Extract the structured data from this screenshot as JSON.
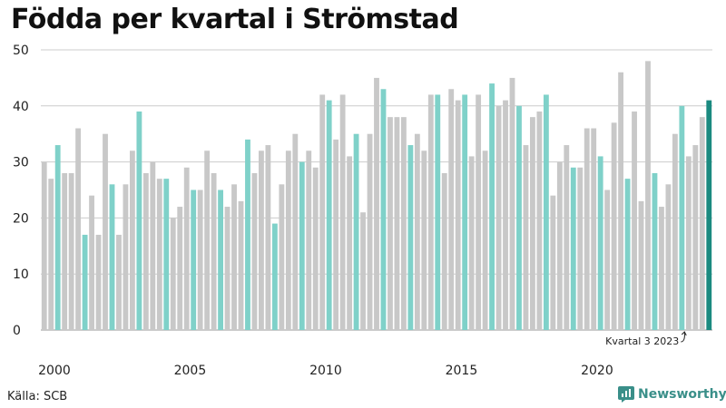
{
  "title": "Födda per kvartal i Strömstad",
  "source": "Källa: SCB",
  "brand": "Newsworthy",
  "colors": {
    "regular": "#c8c8c8",
    "q3": "#7fd1c9",
    "latest": "#1b8a80",
    "grid": "#cccccc",
    "brand": "#3a8f89"
  },
  "annotation": "Kvartal 3 2023",
  "chart_data": {
    "type": "bar",
    "title": "Födda per kvartal i Strömstad",
    "xlabel": "",
    "ylabel": "",
    "ylim": [
      0,
      50
    ],
    "yticks": [
      0,
      10,
      20,
      30,
      40,
      50
    ],
    "xticks": [
      "2000",
      "2005",
      "2010",
      "2015",
      "2020"
    ],
    "start_year": 2000,
    "highlight": "Kvartal 3",
    "grid": true,
    "values": [
      30,
      27,
      33,
      28,
      28,
      36,
      17,
      24,
      17,
      35,
      26,
      17,
      26,
      32,
      39,
      28,
      30,
      27,
      27,
      20,
      22,
      29,
      25,
      25,
      32,
      28,
      25,
      22,
      26,
      23,
      34,
      28,
      32,
      33,
      19,
      26,
      32,
      35,
      30,
      32,
      29,
      42,
      41,
      34,
      42,
      31,
      35,
      21,
      35,
      45,
      43,
      38,
      38,
      38,
      33,
      35,
      32,
      42,
      42,
      28,
      43,
      41,
      42,
      31,
      42,
      32,
      44,
      40,
      41,
      45,
      40,
      33,
      38,
      39,
      42,
      24,
      30,
      33,
      29,
      29,
      36,
      36,
      31,
      25,
      37,
      46,
      27,
      39,
      23,
      48,
      28,
      22,
      26,
      35,
      40,
      31,
      33,
      38,
      41
    ]
  }
}
